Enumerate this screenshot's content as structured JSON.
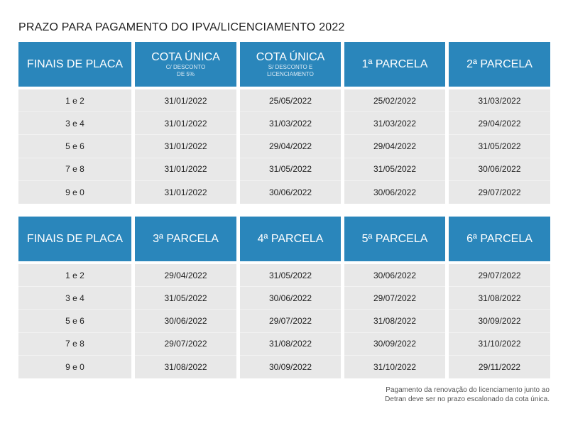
{
  "title": "PRAZO PARA PAGAMENTO DO IPVA/LICENCIAMENTO 2022",
  "tables": [
    {
      "headers": [
        {
          "main": "FINAIS DE PLACA"
        },
        {
          "main": "COTA ÚNICA",
          "sub1": "C/ DESCONTO",
          "sub2": "DE 5%"
        },
        {
          "main": "COTA ÚNICA",
          "sub1": "S/ DESCONTO E",
          "sub2": "LICENCIAMENTO"
        },
        {
          "main": "1ª PARCELA"
        },
        {
          "main": "2ª PARCELA"
        }
      ],
      "columns": [
        [
          "1 e 2",
          "3 e 4",
          "5 e 6",
          "7 e 8",
          "9 e 0"
        ],
        [
          "31/01/2022",
          "31/01/2022",
          "31/01/2022",
          "31/01/2022",
          "31/01/2022"
        ],
        [
          "25/05/2022",
          "31/03/2022",
          "29/04/2022",
          "31/05/2022",
          "30/06/2022"
        ],
        [
          "25/02/2022",
          "31/03/2022",
          "29/04/2022",
          "31/05/2022",
          "30/06/2022"
        ],
        [
          "31/03/2022",
          "29/04/2022",
          "31/05/2022",
          "30/06/2022",
          "29/07/2022"
        ]
      ]
    },
    {
      "headers": [
        {
          "main": "FINAIS DE PLACA"
        },
        {
          "main": "3ª PARCELA"
        },
        {
          "main": "4ª PARCELA"
        },
        {
          "main": "5ª PARCELA"
        },
        {
          "main": "6ª PARCELA"
        }
      ],
      "columns": [
        [
          "1 e 2",
          "3 e 4",
          "5 e 6",
          "7 e 8",
          "9 e 0"
        ],
        [
          "29/04/2022",
          "31/05/2022",
          "30/06/2022",
          "29/07/2022",
          "31/08/2022"
        ],
        [
          "31/05/2022",
          "30/06/2022",
          "29/07/2022",
          "31/08/2022",
          "30/09/2022"
        ],
        [
          "30/06/2022",
          "29/07/2022",
          "31/08/2022",
          "30/09/2022",
          "31/10/2022"
        ],
        [
          "29/07/2022",
          "31/08/2022",
          "30/09/2022",
          "31/10/2022",
          "29/11/2022"
        ]
      ]
    }
  ],
  "note": {
    "line1": "Pagamento da renovação do licenciamento junto ao",
    "line2": "Detran deve ser no prazo escalonado da cota única."
  }
}
